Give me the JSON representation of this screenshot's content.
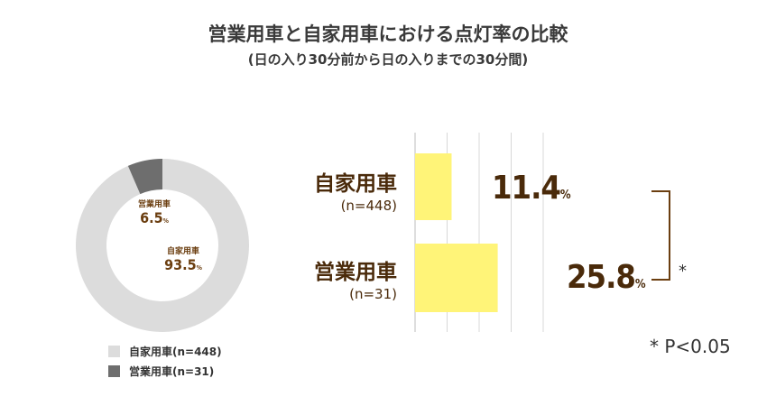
{
  "title": "営業用車と自家用車における点灯率の比較",
  "subtitle": "(日の入り30分前から日の入りまでの30分間)",
  "colors": {
    "bar": "#fff478",
    "donut_light": "#dcdcdc",
    "donut_dark": "#6e6e6e",
    "grid": "#d8d8d8",
    "bracket": "#6b3e10",
    "text_brown": "#4a2a0a"
  },
  "chart_data": [
    {
      "type": "pie",
      "title": "",
      "slices": [
        {
          "label": "自家用車",
          "value": 93.5,
          "value_label": "93.5",
          "unit": "%"
        },
        {
          "label": "営業用車",
          "value": 6.5,
          "value_label": "6.5",
          "unit": "%"
        }
      ],
      "legend": [
        {
          "label": "自家用車(n=448)"
        },
        {
          "label": "営業用車(n=31)"
        }
      ],
      "legend_position": "bottom-left",
      "style": "donut"
    },
    {
      "type": "bar",
      "orientation": "horizontal",
      "categories": [
        "自家用車",
        "営業用車"
      ],
      "sample_sizes": [
        "(n=448)",
        "(n=31)"
      ],
      "values": [
        11.4,
        25.8
      ],
      "value_labels": [
        "11.4",
        "25.8"
      ],
      "unit": "%",
      "xlim": [
        0,
        40
      ],
      "grid": true,
      "significance": {
        "marker": "*",
        "note": "* P<0.05"
      }
    }
  ]
}
